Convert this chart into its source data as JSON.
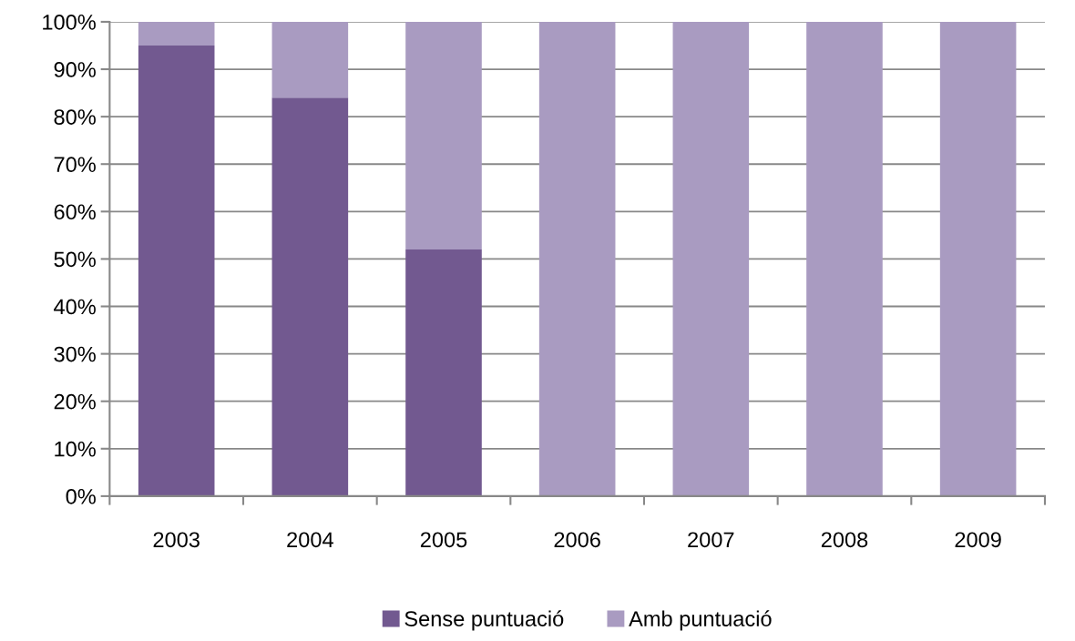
{
  "chart_data": {
    "type": "bar",
    "stacked": true,
    "categories": [
      "2003",
      "2004",
      "2005",
      "2006",
      "2007",
      "2008",
      "2009"
    ],
    "series": [
      {
        "name": "Sense puntuació",
        "color": "#725990",
        "values": [
          95,
          84,
          52,
          0,
          0,
          0,
          0
        ]
      },
      {
        "name": "Amb puntuació",
        "color": "#a99bc1",
        "values": [
          5,
          16,
          48,
          100,
          100,
          100,
          100
        ]
      }
    ],
    "ylim": [
      0,
      100
    ],
    "yticks": [
      {
        "value": 0,
        "label": "0%"
      },
      {
        "value": 10,
        "label": "10%"
      },
      {
        "value": 20,
        "label": "20%"
      },
      {
        "value": 30,
        "label": "30%"
      },
      {
        "value": 40,
        "label": "40%"
      },
      {
        "value": 50,
        "label": "50%"
      },
      {
        "value": 60,
        "label": "60%"
      },
      {
        "value": 70,
        "label": "70%"
      },
      {
        "value": 80,
        "label": "80%"
      },
      {
        "value": 90,
        "label": "90%"
      },
      {
        "value": 100,
        "label": "100%"
      }
    ],
    "grid": "y",
    "legend": "bottom"
  }
}
